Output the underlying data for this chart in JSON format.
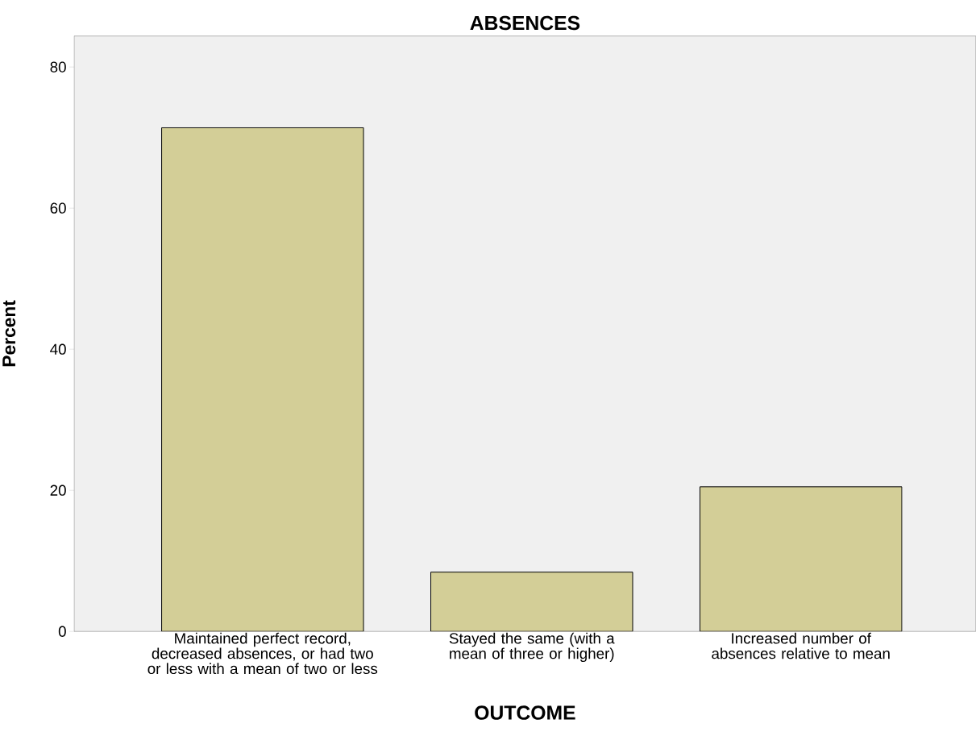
{
  "chart_data": {
    "type": "bar",
    "title": "ABSENCES",
    "xlabel": "OUTCOME",
    "ylabel": "Percent",
    "categories": [
      "Maintained perfect record, decreased absences, or had two or less with a mean of two or less",
      "Stayed the same (with a mean of three or higher)",
      "Increased number of absences relative to mean"
    ],
    "values": [
      71.4,
      8.4,
      20.5
    ],
    "color": "#d3ce97",
    "ylim": [
      0,
      84.4
    ],
    "yticks": [
      0,
      20,
      40,
      60,
      80
    ],
    "grid": false
  }
}
